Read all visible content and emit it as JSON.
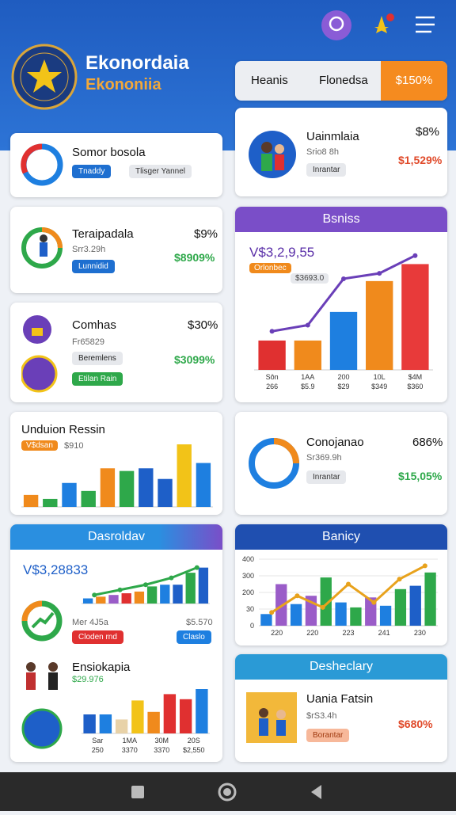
{
  "header": {
    "title": "Ekonordaia",
    "subtitle": "Ekononiia"
  },
  "tabs": [
    "Heanis",
    "Flonedsa",
    "$150%"
  ],
  "left": {
    "c1": {
      "title": "Somor bosola",
      "chips": [
        "Tnaddy",
        "Tlisger Yannel"
      ]
    },
    "c2": {
      "title": "Teraipadala",
      "pct": "$9%",
      "sub": "Srr3.29h",
      "chip": "Lunnidid",
      "value": "$8909%"
    },
    "c3": {
      "title": "Comhas",
      "pct": "$30%",
      "sub": "Fr65829",
      "chips": [
        "Beremlens",
        "Etilan Rain"
      ],
      "value": "$3099%"
    },
    "c4": {
      "title": "Unduion Ressin",
      "chip": "V$dsan",
      "note": "$910",
      "chart": {
        "type": "bar",
        "ylim": [
          0,
          100
        ],
        "values": [
          18,
          12,
          36,
          24,
          58,
          54,
          58,
          42,
          94,
          66
        ],
        "colors": [
          "#f08a1c",
          "#2ea84a",
          "#1e7fe0",
          "#2ea84a",
          "#f08a1c",
          "#2ea84a",
          "#1e5fc8",
          "#1e5fc8",
          "#f2c318",
          "#1e7fe0"
        ]
      }
    },
    "c5": {
      "header": "Dasroldav",
      "value": "V$3,28833",
      "left_label": "Mer 4J5a",
      "right_label": "$5.570",
      "chips": [
        "Cloden rnd",
        "Claslo"
      ],
      "chart": {
        "type": "bar",
        "ylim": [
          0,
          50
        ],
        "values": [
          6,
          8,
          10,
          12,
          14,
          20,
          22,
          22,
          36,
          42
        ],
        "colors": [
          "#1e7fe0",
          "#f08a1c",
          "#9a5cc8",
          "#e03030",
          "#f08a1c",
          "#2ea84a",
          "#1e7fe0",
          "#1e5fc8",
          "#2ea84a",
          "#1e5fc8"
        ],
        "line": [
          10,
          16,
          22,
          30,
          42
        ]
      },
      "sub_title": "Ensiokapia",
      "sub_value": "$29.976",
      "chart2": {
        "type": "bar",
        "ylim": [
          0,
          80
        ],
        "values": [
          30,
          30,
          22,
          52,
          34,
          62,
          54,
          70
        ],
        "colors": [
          "#1e5fc8",
          "#1e7fe0",
          "#e8d2a8",
          "#f2c318",
          "#f08a1c",
          "#e03030",
          "#e03030",
          "#1e7fe0"
        ],
        "categories": [
          "Sar",
          "1MA",
          "30M",
          "20S"
        ],
        "sublabels": [
          "250",
          "3370",
          "3370",
          "$2,550"
        ]
      }
    }
  },
  "right": {
    "c1": {
      "title": "Uainmlaia",
      "pct": "$8%",
      "sub": "Srio8 8h",
      "chip": "Inrantar",
      "value": "$1,529%"
    },
    "c2": {
      "header": "Bsniss",
      "value": "V$3,2,9,55",
      "chips": [
        "Orlonbec",
        "$3693.0"
      ],
      "chart": {
        "type": "bar",
        "ylim": [
          0,
          160
        ],
        "values": [
          38,
          38,
          75,
          115,
          137
        ],
        "colors": [
          "#e03030",
          "#f08a1c",
          "#1e7fe0",
          "#f08a1c",
          "#e83a3a"
        ],
        "line": [
          50,
          58,
          118,
          125,
          148
        ],
        "categories": [
          "Sôn",
          "1AA",
          "200",
          "10L",
          "$4M"
        ],
        "sublabels": [
          "266",
          "$5.9",
          "$29",
          "$349",
          "$360"
        ]
      }
    },
    "c3": {
      "title": "Conojanao",
      "pct": "686%",
      "sub": "Sr369.9h",
      "chip": "Inrantar",
      "value": "$15,05%"
    },
    "c4": {
      "header": "Banicy",
      "chart": {
        "type": "bar",
        "ylim": [
          0,
          400
        ],
        "y_labels": [
          "400",
          "300",
          "200",
          "30",
          "0"
        ],
        "values": [
          70,
          250,
          130,
          180,
          290,
          140,
          110,
          170,
          120,
          220,
          240,
          320
        ],
        "colors": [
          "#1e7fe0",
          "#9a5cc8",
          "#1e7fe0",
          "#9a5cc8",
          "#2ea84a",
          "#1e7fe0",
          "#2ea84a",
          "#9a5cc8",
          "#1e7fe0",
          "#2ea84a",
          "#1e5fc8",
          "#2ea84a"
        ],
        "line": [
          80,
          180,
          110,
          250,
          140,
          280,
          360
        ],
        "categories": [
          "220",
          "220",
          "223",
          "241",
          "230"
        ]
      }
    },
    "c5": {
      "header": "Desheclary",
      "title": "Uania Fatsin",
      "sub": "$rS3.4h",
      "chip": "Borantar",
      "value": "$680%"
    }
  }
}
